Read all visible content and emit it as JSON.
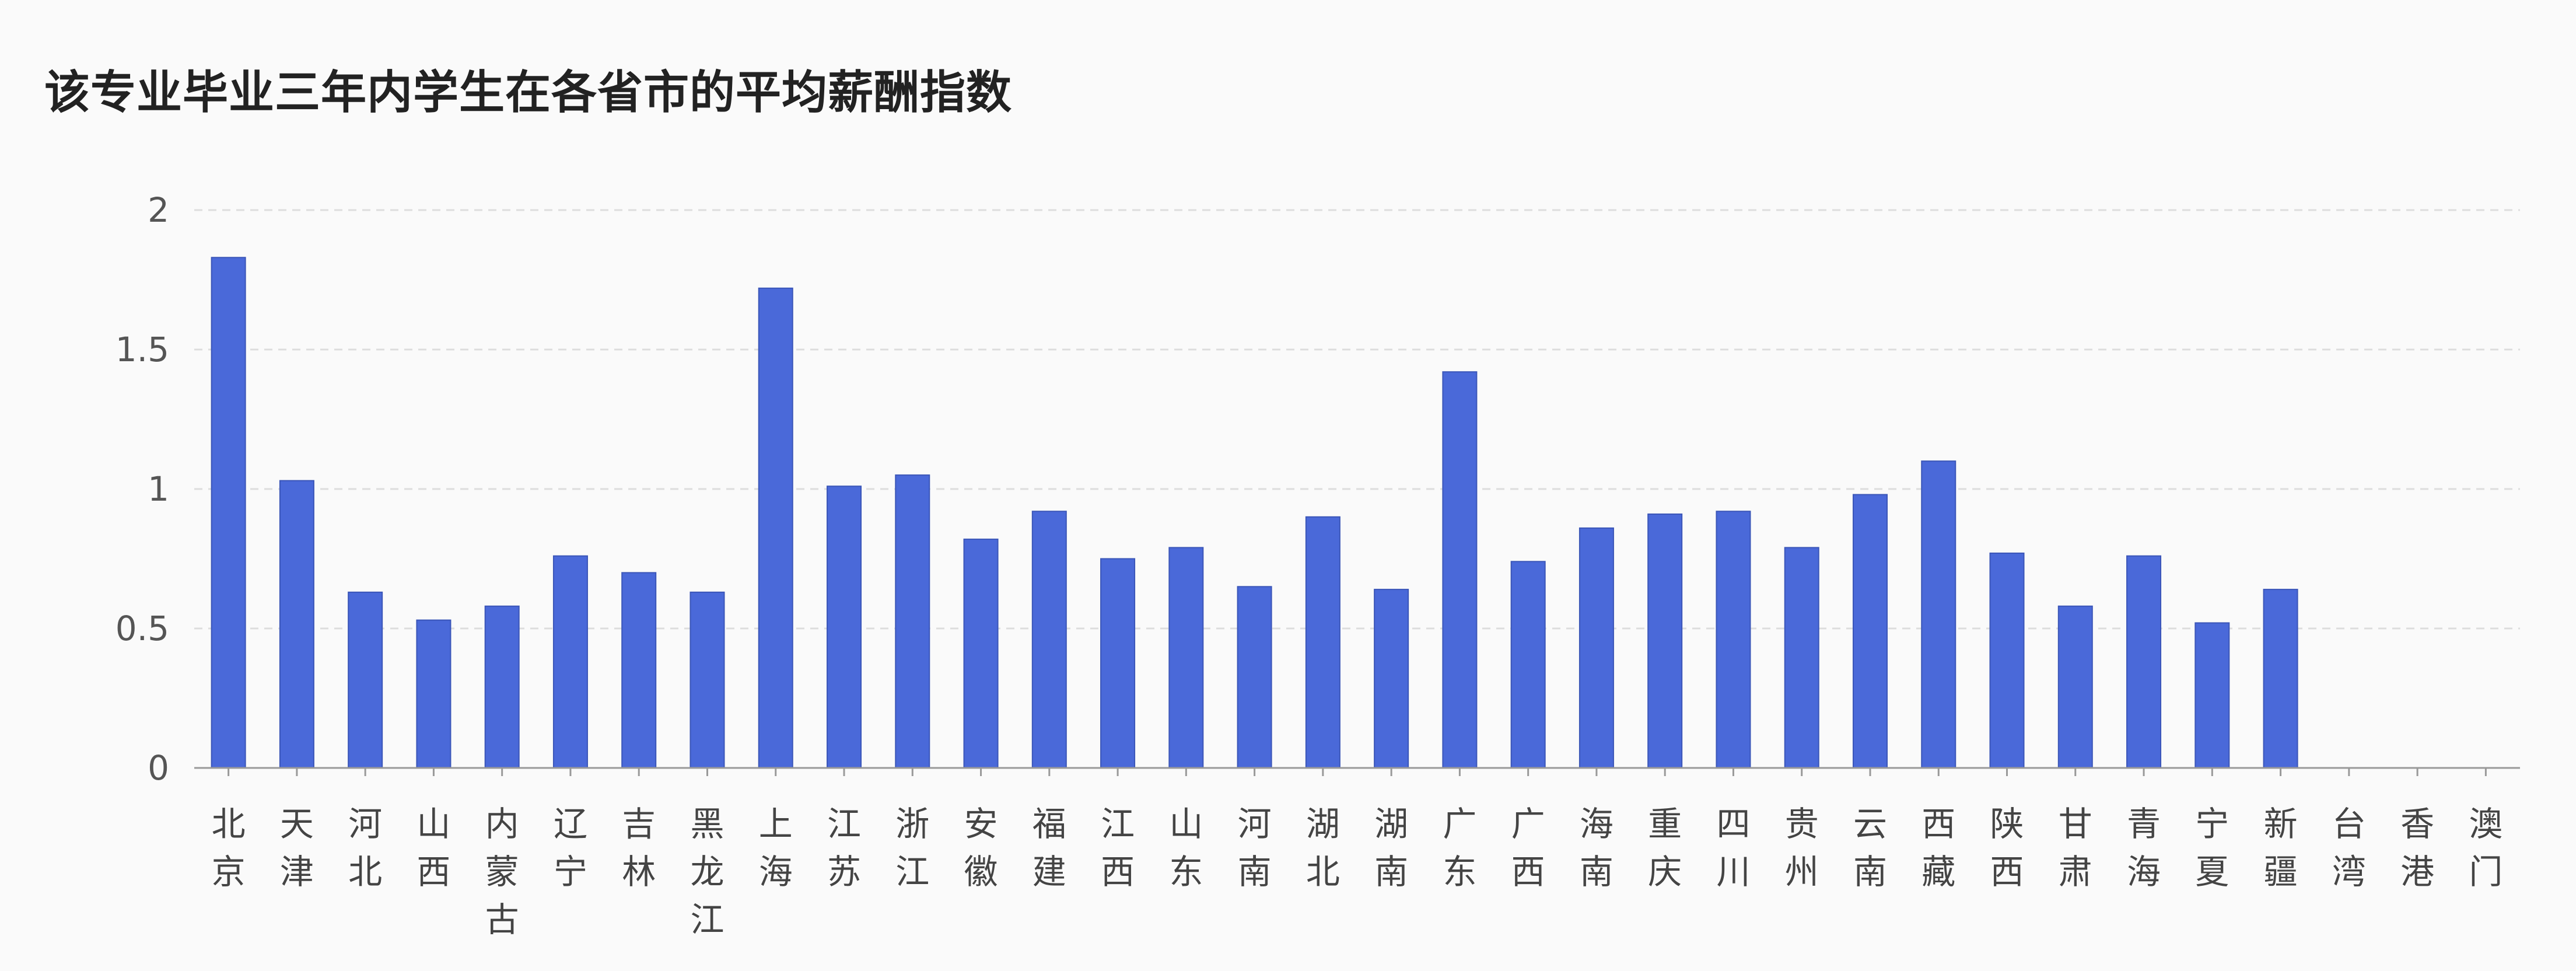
{
  "chart_data": {
    "type": "bar",
    "title": "该专业毕业三年内学生在各省市的平均薪酬指数",
    "xlabel": "",
    "ylabel": "",
    "categories": [
      "北京",
      "天津",
      "河北",
      "山西",
      "内蒙古",
      "辽宁",
      "吉林",
      "黑龙江",
      "上海",
      "江苏",
      "浙江",
      "安徽",
      "福建",
      "江西",
      "山东",
      "河南",
      "湖北",
      "湖南",
      "广东",
      "广西",
      "海南",
      "重庆",
      "四川",
      "贵州",
      "云南",
      "西藏",
      "陕西",
      "甘肃",
      "青海",
      "宁夏",
      "新疆",
      "台湾",
      "香港",
      "澳门"
    ],
    "values": [
      1.83,
      1.03,
      0.63,
      0.53,
      0.58,
      0.76,
      0.7,
      0.63,
      1.72,
      1.01,
      1.05,
      0.82,
      0.92,
      0.75,
      0.79,
      0.65,
      0.9,
      0.64,
      1.42,
      0.74,
      0.86,
      0.91,
      0.92,
      0.79,
      0.98,
      1.1,
      0.77,
      0.58,
      0.76,
      0.52,
      0.64,
      null,
      null,
      null
    ],
    "ylim": [
      0,
      2
    ],
    "yticks": [
      0,
      0.5,
      1,
      1.5,
      2
    ],
    "ytick_labels": [
      "0",
      "0.5",
      "1",
      "1.5",
      "2"
    ],
    "grid": true,
    "grid_style": "dashed",
    "legend": "none",
    "colors": {
      "bar": "#4a69d9",
      "bar_border": "#3b56b8",
      "axis": "#999999",
      "grid": "#dddddd",
      "tick_text": "#555555",
      "title": "#222222",
      "background": "#fafafa"
    }
  }
}
